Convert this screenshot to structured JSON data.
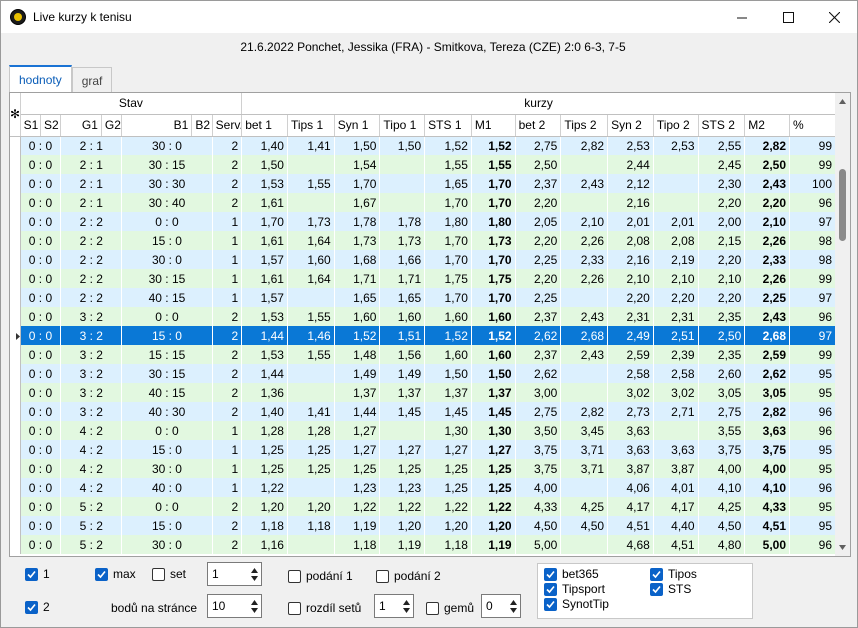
{
  "window": {
    "title": "Live kurzy k tenisu",
    "minimize_icon": "minimize-icon",
    "maximize_icon": "maximize-icon",
    "close_icon": "close-icon"
  },
  "match": {
    "summary": "21.6.2022 Ponchet, Jessika (FRA) - Smitkova, Tereza (CZE)  2:0  6-3, 7-5"
  },
  "tabs": [
    {
      "label": "hodnoty",
      "active": true
    },
    {
      "label": "graf",
      "active": false
    }
  ],
  "grid": {
    "corner": "✻",
    "groups": {
      "stav": "Stav",
      "kurzy": "kurzy"
    },
    "columns": [
      "S1",
      "S2",
      "G1",
      "G2",
      "B1",
      "B2",
      "Serv.",
      "bet 1",
      "Tips 1",
      "Syn 1",
      "Tipo 1",
      "STS 1",
      "M1",
      "bet 2",
      "Tips 2",
      "Syn 2",
      "Tipo 2",
      "STS 2",
      "M2",
      "%"
    ],
    "rows": [
      {
        "s": "0 : 0",
        "g": "2 : 1",
        "b": "30 : 0",
        "serv": "2",
        "bet1": "1,40",
        "tips1": "1,41",
        "syn1": "1,50",
        "tipo1": "1,50",
        "sts1": "1,52",
        "m1": "1,52",
        "bet2": "2,75",
        "tips2": "2,82",
        "syn2": "2,53",
        "tipo2": "2,53",
        "sts2": "2,55",
        "m2": "2,82",
        "pct": "99"
      },
      {
        "s": "0 : 0",
        "g": "2 : 1",
        "b": "30 : 15",
        "serv": "2",
        "bet1": "1,50",
        "tips1": "",
        "syn1": "1,54",
        "tipo1": "",
        "sts1": "1,55",
        "m1": "1,55",
        "bet2": "2,50",
        "tips2": "",
        "syn2": "2,44",
        "tipo2": "",
        "sts2": "2,45",
        "m2": "2,50",
        "pct": "99"
      },
      {
        "s": "0 : 0",
        "g": "2 : 1",
        "b": "30 : 30",
        "serv": "2",
        "bet1": "1,53",
        "tips1": "1,55",
        "syn1": "1,70",
        "tipo1": "",
        "sts1": "1,65",
        "m1": "1,70",
        "bet2": "2,37",
        "tips2": "2,43",
        "syn2": "2,12",
        "tipo2": "",
        "sts2": "2,30",
        "m2": "2,43",
        "pct": "100"
      },
      {
        "s": "0 : 0",
        "g": "2 : 1",
        "b": "30 : 40",
        "serv": "2",
        "bet1": "1,61",
        "tips1": "",
        "syn1": "1,67",
        "tipo1": "",
        "sts1": "1,70",
        "m1": "1,70",
        "bet2": "2,20",
        "tips2": "",
        "syn2": "2,16",
        "tipo2": "",
        "sts2": "2,20",
        "m2": "2,20",
        "pct": "96"
      },
      {
        "s": "0 : 0",
        "g": "2 : 2",
        "b": "0 : 0",
        "serv": "1",
        "bet1": "1,70",
        "tips1": "1,73",
        "syn1": "1,78",
        "tipo1": "1,78",
        "sts1": "1,80",
        "m1": "1,80",
        "bet2": "2,05",
        "tips2": "2,10",
        "syn2": "2,01",
        "tipo2": "2,01",
        "sts2": "2,00",
        "m2": "2,10",
        "pct": "97"
      },
      {
        "s": "0 : 0",
        "g": "2 : 2",
        "b": "15 : 0",
        "serv": "1",
        "bet1": "1,61",
        "tips1": "1,64",
        "syn1": "1,73",
        "tipo1": "1,73",
        "sts1": "1,70",
        "m1": "1,73",
        "bet2": "2,20",
        "tips2": "2,26",
        "syn2": "2,08",
        "tipo2": "2,08",
        "sts2": "2,15",
        "m2": "2,26",
        "pct": "98"
      },
      {
        "s": "0 : 0",
        "g": "2 : 2",
        "b": "30 : 0",
        "serv": "1",
        "bet1": "1,57",
        "tips1": "1,60",
        "syn1": "1,68",
        "tipo1": "1,66",
        "sts1": "1,70",
        "m1": "1,70",
        "bet2": "2,25",
        "tips2": "2,33",
        "syn2": "2,16",
        "tipo2": "2,19",
        "sts2": "2,20",
        "m2": "2,33",
        "pct": "98"
      },
      {
        "s": "0 : 0",
        "g": "2 : 2",
        "b": "30 : 15",
        "serv": "1",
        "bet1": "1,61",
        "tips1": "1,64",
        "syn1": "1,71",
        "tipo1": "1,71",
        "sts1": "1,75",
        "m1": "1,75",
        "bet2": "2,20",
        "tips2": "2,26",
        "syn2": "2,10",
        "tipo2": "2,10",
        "sts2": "2,10",
        "m2": "2,26",
        "pct": "99"
      },
      {
        "s": "0 : 0",
        "g": "2 : 2",
        "b": "40 : 15",
        "serv": "1",
        "bet1": "1,57",
        "tips1": "",
        "syn1": "1,65",
        "tipo1": "1,65",
        "sts1": "1,70",
        "m1": "1,70",
        "bet2": "2,25",
        "tips2": "",
        "syn2": "2,20",
        "tipo2": "2,20",
        "sts2": "2,20",
        "m2": "2,25",
        "pct": "97"
      },
      {
        "s": "0 : 0",
        "g": "3 : 2",
        "b": "0 : 0",
        "serv": "2",
        "bet1": "1,53",
        "tips1": "1,55",
        "syn1": "1,60",
        "tipo1": "1,60",
        "sts1": "1,60",
        "m1": "1,60",
        "bet2": "2,37",
        "tips2": "2,43",
        "syn2": "2,31",
        "tipo2": "2,31",
        "sts2": "2,35",
        "m2": "2,43",
        "pct": "96"
      },
      {
        "s": "0 : 0",
        "g": "3 : 2",
        "b": "15 : 0",
        "serv": "2",
        "bet1": "1,44",
        "tips1": "1,46",
        "syn1": "1,52",
        "tipo1": "1,51",
        "sts1": "1,52",
        "m1": "1,52",
        "bet2": "2,62",
        "tips2": "2,68",
        "syn2": "2,49",
        "tipo2": "2,51",
        "sts2": "2,50",
        "m2": "2,68",
        "pct": "97",
        "selected": true
      },
      {
        "s": "0 : 0",
        "g": "3 : 2",
        "b": "15 : 15",
        "serv": "2",
        "bet1": "1,53",
        "tips1": "1,55",
        "syn1": "1,48",
        "tipo1": "1,56",
        "sts1": "1,60",
        "m1": "1,60",
        "bet2": "2,37",
        "tips2": "2,43",
        "syn2": "2,59",
        "tipo2": "2,39",
        "sts2": "2,35",
        "m2": "2,59",
        "pct": "99"
      },
      {
        "s": "0 : 0",
        "g": "3 : 2",
        "b": "30 : 15",
        "serv": "2",
        "bet1": "1,44",
        "tips1": "",
        "syn1": "1,49",
        "tipo1": "1,49",
        "sts1": "1,50",
        "m1": "1,50",
        "bet2": "2,62",
        "tips2": "",
        "syn2": "2,58",
        "tipo2": "2,58",
        "sts2": "2,60",
        "m2": "2,62",
        "pct": "95"
      },
      {
        "s": "0 : 0",
        "g": "3 : 2",
        "b": "40 : 15",
        "serv": "2",
        "bet1": "1,36",
        "tips1": "",
        "syn1": "1,37",
        "tipo1": "1,37",
        "sts1": "1,37",
        "m1": "1,37",
        "bet2": "3,00",
        "tips2": "",
        "syn2": "3,02",
        "tipo2": "3,02",
        "sts2": "3,05",
        "m2": "3,05",
        "pct": "95"
      },
      {
        "s": "0 : 0",
        "g": "3 : 2",
        "b": "40 : 30",
        "serv": "2",
        "bet1": "1,40",
        "tips1": "1,41",
        "syn1": "1,44",
        "tipo1": "1,45",
        "sts1": "1,45",
        "m1": "1,45",
        "bet2": "2,75",
        "tips2": "2,82",
        "syn2": "2,73",
        "tipo2": "2,71",
        "sts2": "2,75",
        "m2": "2,82",
        "pct": "96"
      },
      {
        "s": "0 : 0",
        "g": "4 : 2",
        "b": "0 : 0",
        "serv": "1",
        "bet1": "1,28",
        "tips1": "1,28",
        "syn1": "1,27",
        "tipo1": "",
        "sts1": "1,30",
        "m1": "1,30",
        "bet2": "3,50",
        "tips2": "3,45",
        "syn2": "3,63",
        "tipo2": "",
        "sts2": "3,55",
        "m2": "3,63",
        "pct": "96"
      },
      {
        "s": "0 : 0",
        "g": "4 : 2",
        "b": "15 : 0",
        "serv": "1",
        "bet1": "1,25",
        "tips1": "1,25",
        "syn1": "1,27",
        "tipo1": "1,27",
        "sts1": "1,27",
        "m1": "1,27",
        "bet2": "3,75",
        "tips2": "3,71",
        "syn2": "3,63",
        "tipo2": "3,63",
        "sts2": "3,75",
        "m2": "3,75",
        "pct": "95"
      },
      {
        "s": "0 : 0",
        "g": "4 : 2",
        "b": "30 : 0",
        "serv": "1",
        "bet1": "1,25",
        "tips1": "1,25",
        "syn1": "1,25",
        "tipo1": "1,25",
        "sts1": "1,25",
        "m1": "1,25",
        "bet2": "3,75",
        "tips2": "3,71",
        "syn2": "3,87",
        "tipo2": "3,87",
        "sts2": "4,00",
        "m2": "4,00",
        "pct": "95"
      },
      {
        "s": "0 : 0",
        "g": "4 : 2",
        "b": "40 : 0",
        "serv": "1",
        "bet1": "1,22",
        "tips1": "",
        "syn1": "1,23",
        "tipo1": "1,23",
        "sts1": "1,25",
        "m1": "1,25",
        "bet2": "4,00",
        "tips2": "",
        "syn2": "4,06",
        "tipo2": "4,01",
        "sts2": "4,10",
        "m2": "4,10",
        "pct": "96"
      },
      {
        "s": "0 : 0",
        "g": "5 : 2",
        "b": "0 : 0",
        "serv": "2",
        "bet1": "1,20",
        "tips1": "1,20",
        "syn1": "1,22",
        "tipo1": "1,22",
        "sts1": "1,22",
        "m1": "1,22",
        "bet2": "4,33",
        "tips2": "4,25",
        "syn2": "4,17",
        "tipo2": "4,17",
        "sts2": "4,25",
        "m2": "4,33",
        "pct": "95"
      },
      {
        "s": "0 : 0",
        "g": "5 : 2",
        "b": "15 : 0",
        "serv": "2",
        "bet1": "1,18",
        "tips1": "1,18",
        "syn1": "1,19",
        "tipo1": "1,20",
        "sts1": "1,20",
        "m1": "1,20",
        "bet2": "4,50",
        "tips2": "4,50",
        "syn2": "4,51",
        "tipo2": "4,40",
        "sts2": "4,50",
        "m2": "4,51",
        "pct": "95"
      },
      {
        "s": "0 : 0",
        "g": "5 : 2",
        "b": "30 : 0",
        "serv": "2",
        "bet1": "1,16",
        "tips1": "",
        "syn1": "1,18",
        "tipo1": "1,19",
        "sts1": "1,18",
        "m1": "1,19",
        "bet2": "5,00",
        "tips2": "",
        "syn2": "4,68",
        "tipo2": "4,51",
        "sts2": "4,80",
        "m2": "5,00",
        "pct": "96"
      }
    ]
  },
  "controls": {
    "chk_1": {
      "label": "1",
      "checked": true
    },
    "chk_2": {
      "label": "2",
      "checked": true
    },
    "chk_max": {
      "label": "max",
      "checked": true
    },
    "chk_set": {
      "label": "set",
      "checked": false
    },
    "spin_set": "1",
    "points_label": "bodů na stránce",
    "spin_points": "10",
    "chk_podani1": {
      "label": "podání 1",
      "checked": false
    },
    "chk_podani2": {
      "label": "podání 2",
      "checked": false
    },
    "chk_rozdil": {
      "label": "rozdíl setů",
      "checked": false
    },
    "spin_rozdil": "1",
    "chk_gemu": {
      "label": "gemů",
      "checked": false
    },
    "spin_gemu": "0",
    "bookies": {
      "bet365": {
        "label": "bet365",
        "checked": true
      },
      "tipsport": {
        "label": "Tipsport",
        "checked": true
      },
      "synottip": {
        "label": "SynotTip",
        "checked": true
      },
      "tipos": {
        "label": "Tipos",
        "checked": true
      },
      "sts": {
        "label": "STS",
        "checked": true
      }
    }
  },
  "colors": {
    "row_blue": "#dcf0fe",
    "row_green": "#e2f8e0",
    "selected": "#0a78d6",
    "accent": "#0a62c8"
  }
}
